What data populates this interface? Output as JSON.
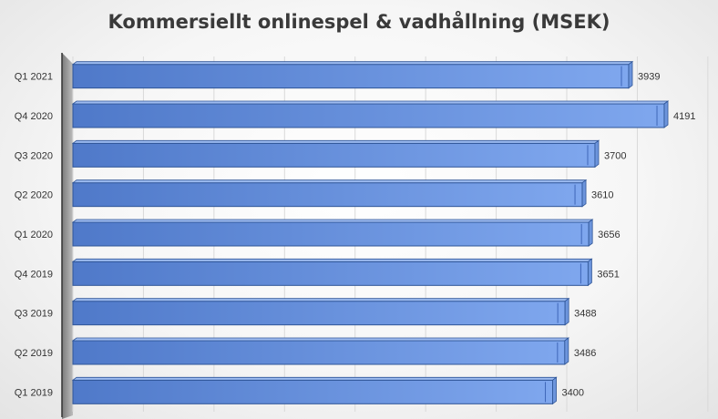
{
  "chart_data": {
    "type": "bar",
    "orientation": "horizontal",
    "title": "Kommersiellt onlinespel & vadhållning (MSEK)",
    "xlabel": "",
    "ylabel": "",
    "xlim": [
      0,
      4500
    ],
    "grid": true,
    "legend": "none",
    "bar_color": "#5b86d6",
    "categories": [
      "Q1 2021",
      "Q4 2020",
      "Q3 2020",
      "Q2 2020",
      "Q1 2020",
      "Q4 2019",
      "Q3 2019",
      "Q2 2019",
      "Q1 2019"
    ],
    "values": [
      3939,
      4191,
      3700,
      3610,
      3656,
      3651,
      3488,
      3486,
      3400
    ]
  }
}
